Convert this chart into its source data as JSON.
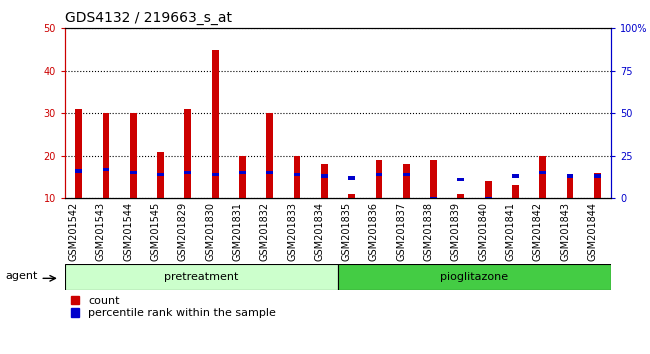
{
  "title": "GDS4132 / 219663_s_at",
  "samples": [
    "GSM201542",
    "GSM201543",
    "GSM201544",
    "GSM201545",
    "GSM201829",
    "GSM201830",
    "GSM201831",
    "GSM201832",
    "GSM201833",
    "GSM201834",
    "GSM201835",
    "GSM201836",
    "GSM201837",
    "GSM201838",
    "GSM201839",
    "GSM201840",
    "GSM201841",
    "GSM201842",
    "GSM201843",
    "GSM201844"
  ],
  "count_values": [
    31,
    30,
    30,
    21,
    31,
    45,
    20,
    30,
    20,
    18,
    11,
    19,
    18,
    19,
    11,
    14,
    13,
    20,
    15,
    16
  ],
  "percentile_values": [
    16,
    17,
    15,
    14,
    15,
    14,
    15,
    15,
    14,
    13,
    12,
    14,
    14,
    0,
    11,
    0,
    13,
    15,
    13,
    13
  ],
  "bar_bottom": 10,
  "count_color": "#cc0000",
  "percentile_color": "#0000cc",
  "ylim_left": [
    10,
    50
  ],
  "ylim_right": [
    0,
    100
  ],
  "yticks_left": [
    10,
    20,
    30,
    40,
    50
  ],
  "yticks_right": [
    0,
    25,
    50,
    75,
    100
  ],
  "ytick_labels_right": [
    "0",
    "25",
    "50",
    "75",
    "100%"
  ],
  "group1_label": "pretreatment",
  "group2_label": "pioglitazone",
  "group1_count": 10,
  "agent_label": "agent",
  "legend_count": "count",
  "legend_percentile": "percentile rank within the sample",
  "plot_bg": "#ffffff",
  "xtick_bg": "#d0d0d0",
  "group_bg_light": "#ccffcc",
  "group_bg_dark": "#44cc44",
  "title_fontsize": 10,
  "tick_fontsize": 7,
  "bar_width": 0.25
}
